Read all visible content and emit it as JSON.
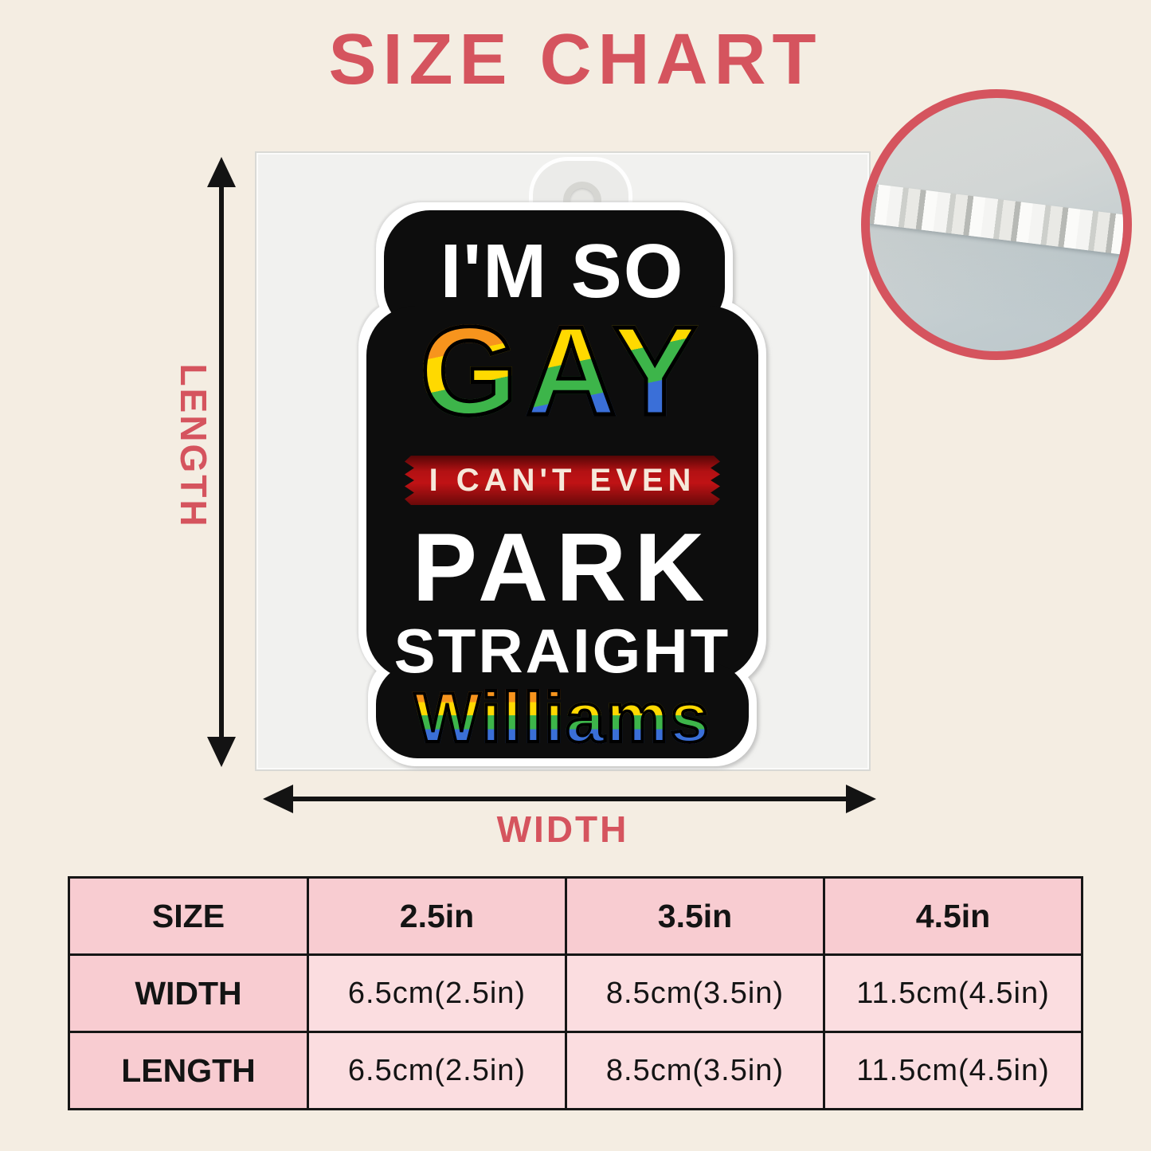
{
  "title": "SIZE CHART",
  "dimension_labels": {
    "length": "LENGTH",
    "width": "WIDTH"
  },
  "ornament": {
    "line1": "I'M SO",
    "line2": "GAY",
    "banner": "I CAN'T EVEN",
    "line3": "PARK",
    "line4": "STRAIGHT",
    "name": "Williams"
  },
  "detail_view": {
    "icon": "acrylic-edge-closeup"
  },
  "colors": {
    "accent_red": "#d5545e",
    "background_cream": "#f4ede2",
    "table_header_pink": "#f8ccd1",
    "table_cell_pink": "#fbdde0",
    "banner_red": "#c01215",
    "rainbow": [
      "#ef2b24",
      "#f7941d",
      "#ffd900",
      "#3db54a",
      "#3a6fd8",
      "#8e3fd1"
    ]
  },
  "table": {
    "header": [
      "SIZE",
      "2.5in",
      "3.5in",
      "4.5in"
    ],
    "rows": [
      {
        "label": "WIDTH",
        "cells": [
          "6.5cm(2.5in)",
          "8.5cm(3.5in)",
          "11.5cm(4.5in)"
        ]
      },
      {
        "label": "LENGTH",
        "cells": [
          "6.5cm(2.5in)",
          "8.5cm(3.5in)",
          "11.5cm(4.5in)"
        ]
      }
    ]
  }
}
